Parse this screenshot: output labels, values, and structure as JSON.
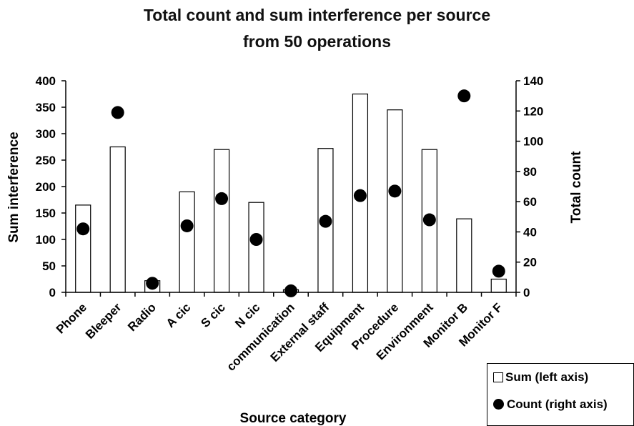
{
  "chart_data": {
    "type": "bar",
    "title_line1": "Total count and sum interference per source",
    "title_line2": "from 50 operations",
    "xlabel": "Source category",
    "ylabel_left": "Sum interference",
    "ylabel_right": "Total count",
    "categories": [
      "Phone",
      "Bleeper",
      "Radio",
      "A cic",
      "S cic",
      "N cic",
      "communication",
      "External staff",
      "Equipment",
      "Procedure",
      "Environment",
      "Monitor B",
      "Monitor F"
    ],
    "ylim_left": [
      0,
      400
    ],
    "ylim_right": [
      0,
      140
    ],
    "yticks_left": [
      0,
      50,
      100,
      150,
      200,
      250,
      300,
      350,
      400
    ],
    "yticks_right": [
      0,
      20,
      40,
      60,
      80,
      100,
      120,
      140
    ],
    "series": [
      {
        "name": "Sum (left axis)",
        "type": "bar",
        "axis": "left",
        "values": [
          165,
          275,
          22,
          190,
          270,
          170,
          5,
          272,
          375,
          345,
          270,
          139,
          25
        ]
      },
      {
        "name": "Count (right axis)",
        "type": "scatter",
        "axis": "right",
        "values": [
          42,
          119,
          6,
          44,
          62,
          35,
          1,
          47,
          64,
          67,
          48,
          130,
          14
        ]
      }
    ],
    "legend_position": "bottom-right",
    "grid": false,
    "colors": {
      "bar_fill": "#ffffff",
      "bar_stroke": "#000000",
      "marker": "#000000"
    }
  }
}
